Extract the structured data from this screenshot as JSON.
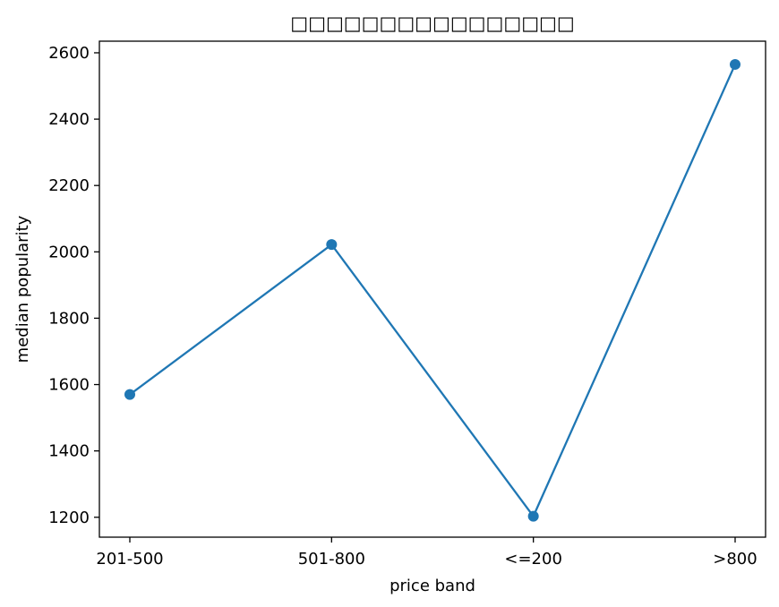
{
  "chart_data": {
    "type": "line",
    "title": "□□□□□□□□□□□□□□□□",
    "xlabel": "price band",
    "ylabel": "median popularity",
    "categories": [
      "201-500",
      "501-800",
      "<=200",
      ">800"
    ],
    "series": [
      {
        "values": [
          1570,
          2022,
          1203,
          2565
        ],
        "color": "#1f77b4",
        "marker": "circle"
      }
    ],
    "ylim": [
      1140,
      2635
    ],
    "yticks": [
      1200,
      1400,
      1600,
      1800,
      2000,
      2200,
      2400,
      2600
    ],
    "grid": false,
    "legend": "none"
  }
}
